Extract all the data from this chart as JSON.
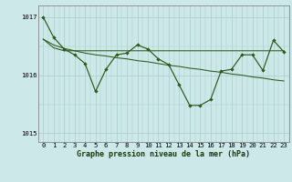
{
  "title": "Graphe pression niveau de la mer (hPa)",
  "bg_color": "#cce8e8",
  "grid_color": "#aacccc",
  "line_color": "#2d5a1b",
  "x": [
    0,
    1,
    2,
    3,
    4,
    5,
    6,
    7,
    8,
    9,
    10,
    11,
    12,
    13,
    14,
    15,
    16,
    17,
    18,
    19,
    20,
    21,
    22,
    23
  ],
  "values_main": [
    1017.0,
    1016.65,
    1016.45,
    1016.35,
    1016.2,
    1015.72,
    1016.1,
    1016.35,
    1016.38,
    1016.52,
    1016.45,
    1016.28,
    1016.18,
    1015.83,
    1015.48,
    1015.48,
    1015.58,
    1016.07,
    1016.1,
    1016.35,
    1016.35,
    1016.08,
    1016.6,
    1016.4
  ],
  "values_flat": [
    1016.62,
    1016.47,
    1016.42,
    1016.42,
    1016.42,
    1016.42,
    1016.42,
    1016.42,
    1016.42,
    1016.42,
    1016.42,
    1016.42,
    1016.42,
    1016.42,
    1016.42,
    1016.42,
    1016.42,
    1016.42,
    1016.42,
    1016.42,
    1016.42,
    1016.42,
    1016.42,
    1016.42
  ],
  "values_trend": [
    1016.62,
    1016.52,
    1016.46,
    1016.42,
    1016.38,
    1016.35,
    1016.33,
    1016.3,
    1016.28,
    1016.25,
    1016.23,
    1016.2,
    1016.17,
    1016.15,
    1016.12,
    1016.1,
    1016.07,
    1016.05,
    1016.02,
    1016.0,
    1015.97,
    1015.95,
    1015.92,
    1015.9
  ],
  "ylim": [
    1014.85,
    1017.2
  ],
  "yticks": [
    1015,
    1016,
    1017
  ],
  "xticks": [
    0,
    1,
    2,
    3,
    4,
    5,
    6,
    7,
    8,
    9,
    10,
    11,
    12,
    13,
    14,
    15,
    16,
    17,
    18,
    19,
    20,
    21,
    22,
    23
  ],
  "tick_fontsize": 5.2,
  "label_fontsize": 6.0
}
